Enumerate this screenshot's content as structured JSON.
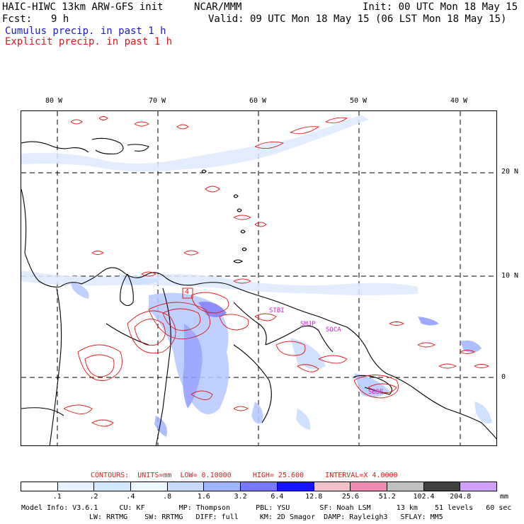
{
  "header": {
    "model_title": "HAIC-HIWC 13km ARW-GFS init",
    "org": "NCAR/MMM",
    "init": "Init: 00 UTC Mon 18 May 15",
    "fcst_label": "Fcst:",
    "fcst_value": "9 h",
    "valid": "Valid: 09 UTC Mon 18 May 15 (06 LST Mon 18 May 15)",
    "legend_cumulus": "Cumulus precip. in past 1 h",
    "legend_explicit": "Explicit precip. in past 1 h"
  },
  "map": {
    "lon_labels": [
      "80 W",
      "70 W",
      "60 W",
      "50 W",
      "40 W"
    ],
    "lat_labels": [
      "20 N",
      "10 N",
      "0"
    ],
    "station_labels": [
      "STBI",
      "SMJP",
      "SOCA",
      "SBBE"
    ],
    "highlight_value": "4"
  },
  "contours": {
    "label": "CONTOURS:",
    "units": "UNITS=mm",
    "low": "LOW= 0.10000",
    "high": "HIGH= 25.600",
    "interval": "INTERVAL=X 4.0000"
  },
  "colorbar": {
    "labels": [
      ".1",
      ".2",
      ".4",
      ".8",
      "1.6",
      "3.2",
      "6.4",
      "12.8",
      "25.6",
      "51.2",
      "102.4",
      "204.8"
    ],
    "unit": "mm",
    "colors": [
      "#ffffff",
      "#e6f2ff",
      "#d2e8ff",
      "#ecfaff",
      "#c8dcff",
      "#a0b4ff",
      "#7878ff",
      "#1414ff",
      "#f4c0c8",
      "#f08cb4",
      "#c0c0c0",
      "#404040",
      "#d0a0ff"
    ]
  },
  "model_info": {
    "line1": "Model Info: V3.6.1     CU: KF        MP: Thompson      PBL: YSU       SF: Noah LSM      13 km    51 levels   60 sec",
    "line2": "LW: RRTMG    SW: RRTMG   DIFF: full     KM: 2D Smagor  DAMP: Rayleigh3   SFLAY: MM5"
  }
}
